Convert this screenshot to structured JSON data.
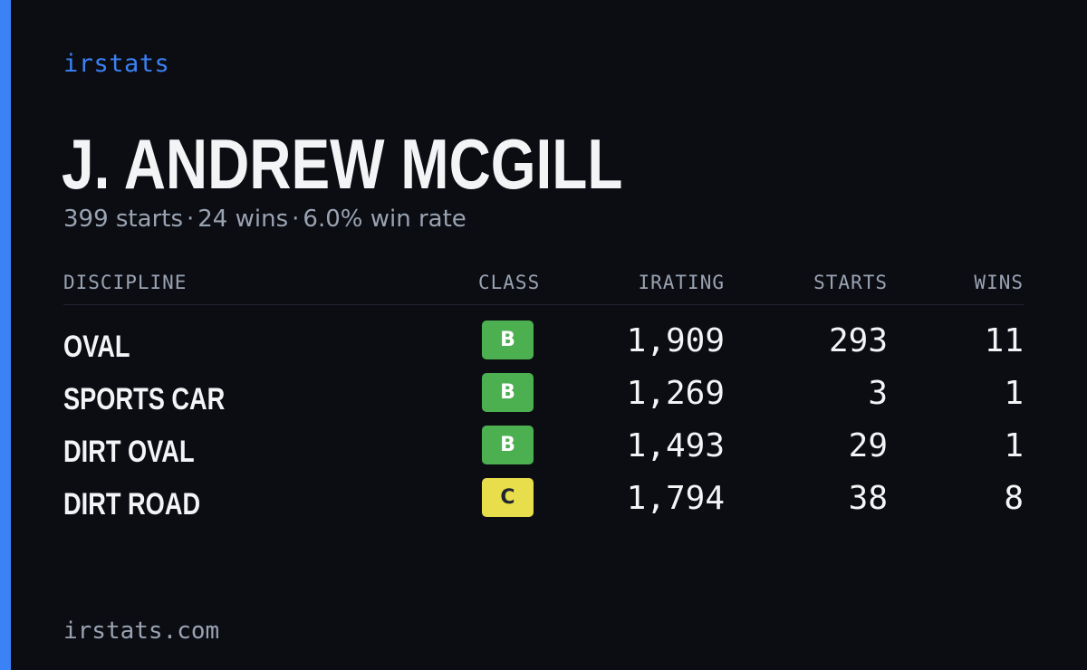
{
  "brand": "irstats",
  "driver": {
    "name": "J. ANDREW MCGILL"
  },
  "summary": {
    "starts": "399 starts",
    "wins": "24 wins",
    "win_rate": "6.0% win rate",
    "separator": "·"
  },
  "table": {
    "headers": {
      "discipline": "DISCIPLINE",
      "class": "CLASS",
      "irating": "IRATING",
      "starts": "STARTS",
      "wins": "WINS"
    },
    "rows": [
      {
        "discipline": "OVAL",
        "class": "B",
        "irating": "1,909",
        "starts": "293",
        "wins": "11"
      },
      {
        "discipline": "SPORTS CAR",
        "class": "B",
        "irating": "1,269",
        "starts": "3",
        "wins": "1"
      },
      {
        "discipline": "DIRT OVAL",
        "class": "B",
        "irating": "1,493",
        "starts": "29",
        "wins": "1"
      },
      {
        "discipline": "DIRT ROAD",
        "class": "C",
        "irating": "1,794",
        "starts": "38",
        "wins": "8"
      }
    ]
  },
  "footer": "irstats.com",
  "colors": {
    "background": "#0b0d13",
    "accent": "#3b82f6",
    "class_b": "#4caf50",
    "class_c": "#e8dd4b",
    "muted_text": "#9aa3b2",
    "primary_text": "#f3f4f6"
  }
}
